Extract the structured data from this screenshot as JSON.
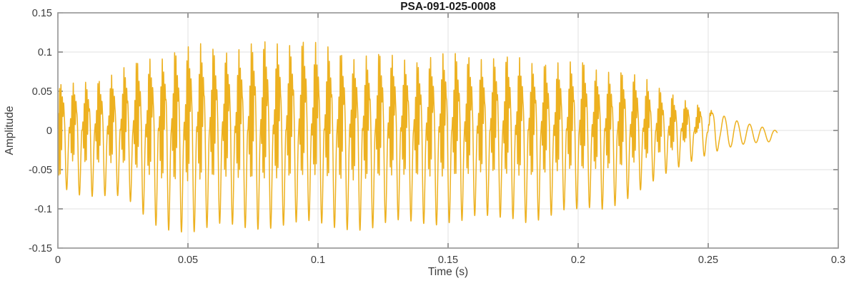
{
  "figure": {
    "background_color": "#ffffff"
  },
  "chart_data": {
    "type": "line",
    "title": "PSA-091-025-0008",
    "xlabel": "Time (s)",
    "ylabel": "Amplitude",
    "xlim": [
      0,
      0.3
    ],
    "ylim": [
      -0.15,
      0.15
    ],
    "xticks": [
      0,
      0.05,
      0.1,
      0.15,
      0.2,
      0.25,
      0.3
    ],
    "xticklabels": [
      "0",
      "0.05",
      "0.1",
      "0.15",
      "0.2",
      "0.25",
      "0.3"
    ],
    "yticks": [
      -0.15,
      -0.1,
      -0.05,
      0,
      0.05,
      0.1,
      0.15
    ],
    "yticklabels": [
      "-0.15",
      "-0.1",
      "-0.05",
      "0",
      "0.05",
      "0.1",
      "0.15"
    ],
    "grid": true,
    "legend": null,
    "line_color": "#EDB120",
    "line_width": 1.5,
    "axis_color": "#9a9a9a",
    "grid_color": "#e2e2e2",
    "tick_color": "#5a5a5a",
    "label_color": "#3c3c3c",
    "title_color": "#1a1a1a",
    "signal": {
      "description": "Voiced speech-like waveform: glottal pulse train with formant ripple, smooth decaying sine tail",
      "t_start": 0,
      "t_end": 0.2765,
      "f0_hz": 204,
      "ripple_hz": 1900,
      "ripple_amp": 0.85,
      "harmonics": {
        "a1": 0.55,
        "a2": 0.33,
        "p2": 2.4,
        "a3": 0.18,
        "p3": 4.6
      },
      "burst_phase": 1.2,
      "hf_fade": [
        0.238,
        0.252
      ],
      "harm_fade": [
        0.242,
        0.258
      ],
      "tail_dc": -0.005,
      "tail_dc_window": [
        0.252,
        0.272
      ],
      "peak_variation": 0.05,
      "peak_variation_hz": [
        41,
        29
      ],
      "envelope_t": [
        0,
        0.005,
        0.01,
        0.015,
        0.02,
        0.025,
        0.03,
        0.035,
        0.04,
        0.045,
        0.05,
        0.055,
        0.06,
        0.065,
        0.07,
        0.075,
        0.08,
        0.085,
        0.09,
        0.095,
        0.1,
        0.105,
        0.11,
        0.115,
        0.12,
        0.125,
        0.13,
        0.135,
        0.14,
        0.145,
        0.15,
        0.155,
        0.16,
        0.165,
        0.17,
        0.175,
        0.18,
        0.185,
        0.19,
        0.195,
        0.2,
        0.205,
        0.21,
        0.215,
        0.22,
        0.225,
        0.23,
        0.235,
        0.24,
        0.245,
        0.25,
        0.255,
        0.26,
        0.265,
        0.27,
        0.275,
        0.2765
      ],
      "envelope_upper": [
        0.055,
        0.058,
        0.06,
        0.065,
        0.07,
        0.075,
        0.082,
        0.09,
        0.096,
        0.1,
        0.102,
        0.106,
        0.103,
        0.104,
        0.103,
        0.105,
        0.108,
        0.112,
        0.115,
        0.111,
        0.106,
        0.101,
        0.097,
        0.095,
        0.093,
        0.092,
        0.09,
        0.092,
        0.09,
        0.092,
        0.095,
        0.093,
        0.098,
        0.091,
        0.088,
        0.09,
        0.088,
        0.086,
        0.086,
        0.085,
        0.083,
        0.08,
        0.078,
        0.075,
        0.07,
        0.064,
        0.057,
        0.049,
        0.04,
        0.032,
        0.026,
        0.021,
        0.016,
        0.012,
        0.009,
        0.006,
        0.004
      ],
      "envelope_lower": [
        -0.07,
        -0.075,
        -0.08,
        -0.082,
        -0.085,
        -0.088,
        -0.1,
        -0.115,
        -0.12,
        -0.122,
        -0.128,
        -0.132,
        -0.126,
        -0.122,
        -0.121,
        -0.12,
        -0.12,
        -0.121,
        -0.122,
        -0.121,
        -0.12,
        -0.121,
        -0.12,
        -0.122,
        -0.125,
        -0.123,
        -0.12,
        -0.118,
        -0.116,
        -0.115,
        -0.113,
        -0.115,
        -0.113,
        -0.114,
        -0.113,
        -0.11,
        -0.112,
        -0.11,
        -0.108,
        -0.105,
        -0.105,
        -0.1,
        -0.098,
        -0.09,
        -0.082,
        -0.074,
        -0.065,
        -0.055,
        -0.045,
        -0.036,
        -0.029,
        -0.023,
        -0.018,
        -0.014,
        -0.011,
        -0.009,
        -0.007
      ]
    }
  }
}
